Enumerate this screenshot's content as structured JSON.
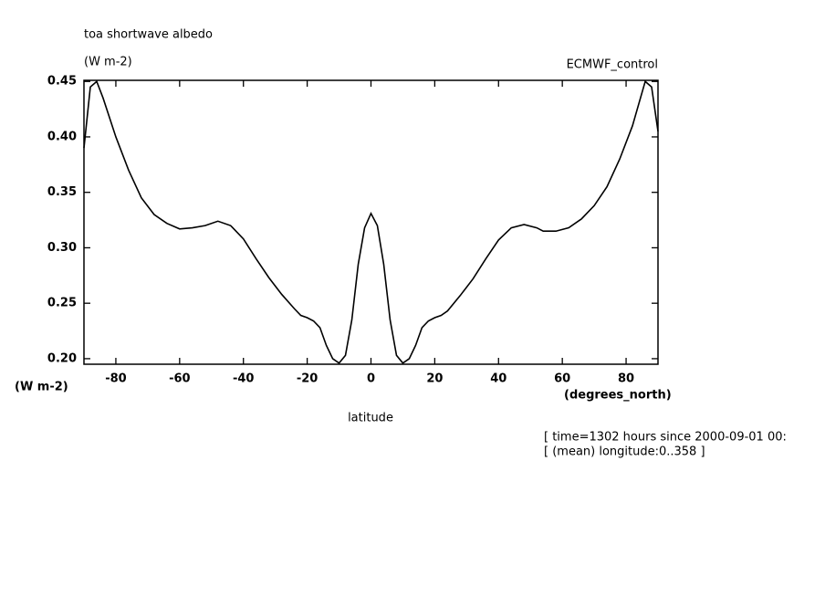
{
  "chart_data": {
    "type": "line",
    "title": "toa shortwave albedo",
    "units": "(W m-2)",
    "dataset": "ECMWF_control",
    "y_axis_units": "(W m-2)",
    "x_axis_units": "(degrees_north)",
    "x_label": "latitude",
    "notes": [
      "[ time=1302 hours since 2000-09-01 00:",
      "[ (mean) longitude:0..358 ]"
    ],
    "xlim": [
      -90,
      90
    ],
    "ylim": [
      0.195,
      0.451
    ],
    "xticks": [
      -80,
      -60,
      -40,
      -20,
      0,
      20,
      40,
      60,
      80
    ],
    "yticks": [
      {
        "value": 0.2,
        "label": "0.20"
      },
      0.25,
      {
        "value": 0.3,
        "label": "0.30"
      },
      0.35,
      {
        "value": 0.4,
        "label": "0.40"
      },
      0.45
    ],
    "series": [
      {
        "color": "#000000",
        "x": [
          -90,
          -88,
          -86,
          -84,
          -80,
          -76,
          -72,
          -68,
          -64,
          -60,
          -56,
          -52,
          -48,
          -44,
          -40,
          -36,
          -32,
          -28,
          -24,
          -22,
          -20,
          -18,
          -16,
          -14,
          -12,
          -10,
          -8,
          -6,
          -4,
          -2,
          0,
          2,
          4,
          6,
          8,
          10,
          12,
          14,
          16,
          18,
          20,
          22,
          24,
          28,
          32,
          36,
          40,
          44,
          48,
          52,
          54,
          58,
          62,
          66,
          70,
          74,
          78,
          82,
          86,
          88,
          90
        ],
        "values": [
          0.39,
          0.445,
          0.45,
          0.435,
          0.4,
          0.37,
          0.345,
          0.33,
          0.322,
          0.317,
          0.318,
          0.32,
          0.324,
          0.32,
          0.308,
          0.29,
          0.273,
          0.258,
          0.245,
          0.239,
          0.237,
          0.234,
          0.228,
          0.212,
          0.2,
          0.196,
          0.203,
          0.235,
          0.285,
          0.318,
          0.331,
          0.32,
          0.285,
          0.235,
          0.203,
          0.196,
          0.2,
          0.212,
          0.228,
          0.234,
          0.237,
          0.239,
          0.243,
          0.257,
          0.272,
          0.29,
          0.307,
          0.318,
          0.321,
          0.318,
          0.315,
          0.315,
          0.318,
          0.326,
          0.338,
          0.355,
          0.38,
          0.41,
          0.45,
          0.445,
          0.405
        ]
      }
    ]
  }
}
